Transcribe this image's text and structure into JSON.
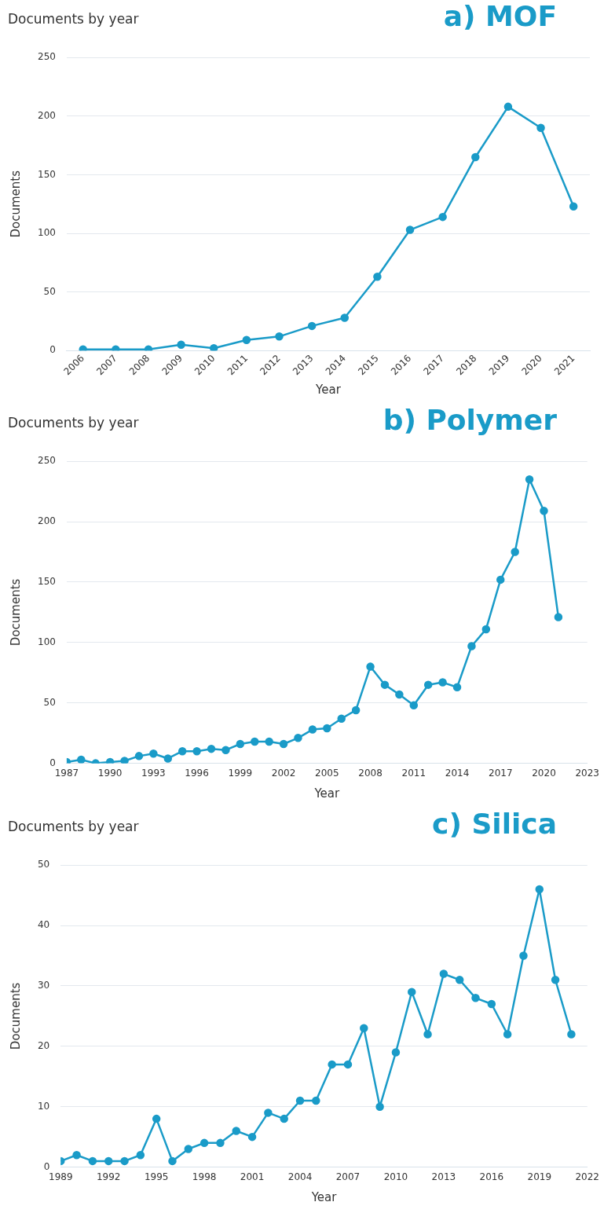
{
  "chart_data": [
    {
      "type": "line",
      "title": "a) MOF",
      "subtitle": "Documents by year",
      "xlabel": "Year",
      "ylabel": "Documents",
      "categories": [
        "2006",
        "2007",
        "2008",
        "2009",
        "2010",
        "2011",
        "2012",
        "2013",
        "2014",
        "2015",
        "2016",
        "2017",
        "2018",
        "2019",
        "2020",
        "2021"
      ],
      "series": [
        {
          "color": "#1a9bc8",
          "values": [
            1,
            1,
            1,
            5,
            2,
            9,
            12,
            21,
            28,
            63,
            103,
            114,
            165,
            208,
            190,
            123
          ]
        }
      ],
      "ylim": [
        0,
        250
      ],
      "yticks": [
        0,
        50,
        100,
        150,
        200,
        250
      ],
      "grid": "y",
      "marker": "circle"
    },
    {
      "type": "line",
      "title": "b) Polymer",
      "subtitle": "Documents by year",
      "xlabel": "Year",
      "ylabel": "Documents",
      "x": [
        1987,
        1988,
        1989,
        1990,
        1991,
        1992,
        1993,
        1994,
        1995,
        1996,
        1997,
        1998,
        1999,
        2000,
        2001,
        2002,
        2003,
        2004,
        2005,
        2006,
        2007,
        2008,
        2009,
        2010,
        2011,
        2012,
        2013,
        2014,
        2015,
        2016,
        2017,
        2018,
        2019,
        2020,
        2021
      ],
      "series": [
        {
          "color": "#1a9bc8",
          "values": [
            1,
            3,
            0,
            1,
            2,
            6,
            8,
            4,
            10,
            10,
            12,
            11,
            16,
            18,
            18,
            16,
            21,
            28,
            29,
            37,
            44,
            80,
            65,
            57,
            48,
            65,
            67,
            63,
            97,
            111,
            152,
            175,
            235,
            209,
            121
          ]
        }
      ],
      "xlim": [
        1987,
        2023
      ],
      "xticks": [
        1987,
        1990,
        1993,
        1996,
        1999,
        2002,
        2005,
        2008,
        2011,
        2014,
        2017,
        2020,
        2023
      ],
      "ylim": [
        0,
        250
      ],
      "yticks": [
        0,
        50,
        100,
        150,
        200,
        250
      ],
      "grid": "y",
      "marker": "circle"
    },
    {
      "type": "line",
      "title": "c) Silica",
      "subtitle": "Documents by year",
      "xlabel": "Year",
      "ylabel": "Documents",
      "x": [
        1989,
        1990,
        1991,
        1992,
        1993,
        1994,
        1995,
        1996,
        1997,
        1998,
        1999,
        2000,
        2001,
        2002,
        2003,
        2004,
        2005,
        2006,
        2007,
        2008,
        2009,
        2010,
        2011,
        2012,
        2013,
        2014,
        2015,
        2016,
        2017,
        2018,
        2019,
        2020,
        2021
      ],
      "series": [
        {
          "color": "#1a9bc8",
          "values": [
            1,
            2,
            1,
            1,
            1,
            2,
            8,
            1,
            3,
            4,
            4,
            6,
            5,
            9,
            8,
            11,
            11,
            17,
            17,
            23,
            10,
            19,
            29,
            22,
            32,
            31,
            28,
            27,
            22,
            35,
            46,
            31,
            22
          ]
        }
      ],
      "xlim": [
        1989,
        2022
      ],
      "xticks": [
        1989,
        1992,
        1995,
        1998,
        2001,
        2004,
        2007,
        2010,
        2013,
        2016,
        2019,
        2022
      ],
      "ylim": [
        0,
        50
      ],
      "yticks": [
        0,
        10,
        20,
        30,
        40,
        50
      ],
      "grid": "y",
      "marker": "circle"
    }
  ]
}
